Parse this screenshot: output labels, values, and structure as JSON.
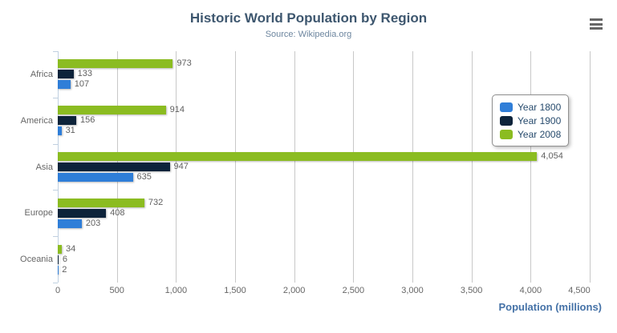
{
  "chart_data": {
    "type": "bar",
    "orientation": "horizontal",
    "title": "Historic World Population by Region",
    "subtitle": "Source: Wikipedia.org",
    "categories": [
      "Africa",
      "America",
      "Asia",
      "Europe",
      "Oceania"
    ],
    "series": [
      {
        "name": "Year 1800",
        "color": "#2f7ed8",
        "values": [
          107,
          31,
          635,
          203,
          2
        ]
      },
      {
        "name": "Year 1900",
        "color": "#0d233a",
        "values": [
          133,
          156,
          947,
          408,
          6
        ]
      },
      {
        "name": "Year 2008",
        "color": "#8bbc21",
        "values": [
          973,
          914,
          4054,
          732,
          34
        ]
      }
    ],
    "series_row_order_top_to_bottom": [
      "Year 2008",
      "Year 1900",
      "Year 1800"
    ],
    "data_labels": true,
    "xlabel": "Population (millions)",
    "xticks": [
      "0",
      "500",
      "1,000",
      "1,500",
      "2,000",
      "2,500",
      "3,000",
      "3,500",
      "4,000",
      "4,500"
    ],
    "xlim": [
      0,
      4500
    ],
    "grid": true,
    "legend": {
      "position": "right",
      "items": [
        "Year 1800",
        "Year 1900",
        "Year 2008"
      ]
    }
  },
  "toolbar": {
    "menu_icon": "hamburger"
  },
  "colors": {
    "title": "#3e576f",
    "subtitle": "#6d869f",
    "axis_label": "#666666",
    "data_label": "#606060",
    "axis_line": "#c0d0e0",
    "gridline": "#c8c8c8",
    "axis_title": "#4572a7",
    "legend_border": "#909090",
    "legend_text": "#274b6d",
    "menu_icon": "#666666",
    "background": "#ffffff"
  }
}
